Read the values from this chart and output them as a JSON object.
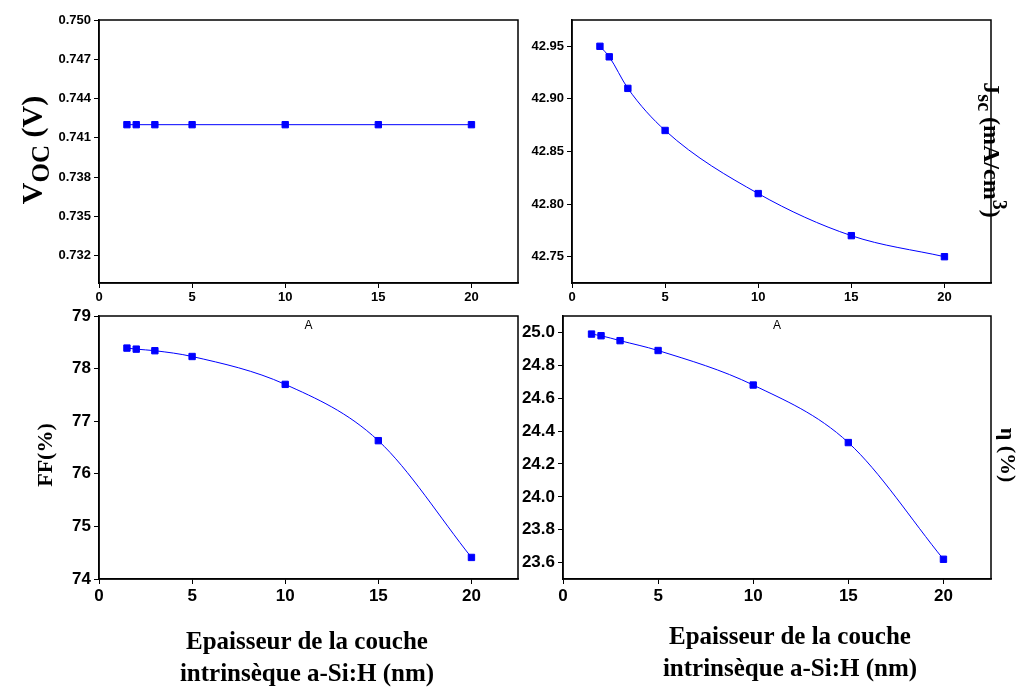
{
  "chart_data": [
    {
      "type": "line",
      "ylabel": "V$_{OC}$ (V)",
      "x": [
        1.5,
        2,
        3,
        5,
        10,
        15,
        20
      ],
      "series": [
        {
          "color": "#0000ff",
          "values": [
            0.742,
            0.742,
            0.742,
            0.742,
            0.742,
            0.742,
            0.742
          ]
        }
      ],
      "xlim": [
        0,
        22.5
      ],
      "xticks": [
        0,
        5,
        10,
        15,
        20
      ],
      "ylim": [
        0.7299,
        0.75
      ],
      "yticks": [
        0.732,
        0.735,
        0.738,
        0.741,
        0.744,
        0.747,
        {
          "value": 0.75,
          "label": "0.750"
        }
      ],
      "marker": "square",
      "grid": false,
      "legend": false
    },
    {
      "type": "line",
      "y2label": "J$_{sc}$ (mA/cm$^{3}$)",
      "x": [
        1.5,
        2,
        3,
        5,
        10,
        15,
        20
      ],
      "series": [
        {
          "color": "#0000ff",
          "values": [
            42.95,
            42.94,
            42.91,
            42.87,
            42.81,
            42.77,
            42.75
          ]
        }
      ],
      "xlim": [
        0,
        22.5
      ],
      "xticks": [
        0,
        5,
        10,
        15,
        20
      ],
      "ylim": [
        42.725,
        42.975
      ],
      "yticks": [
        42.75,
        {
          "value": 42.8,
          "label": "42.80"
        },
        42.85,
        {
          "value": 42.9,
          "label": "42.90"
        },
        42.95
      ],
      "marker": "square",
      "grid": false,
      "legend": false
    },
    {
      "type": "line",
      "ylabel": "FF(%)",
      "xlabel": "Epaisseur de la couche intrinsèque a-Si:H (nm)",
      "annotations": [
        "A"
      ],
      "x": [
        1.5,
        2,
        3,
        5,
        10,
        15,
        20
      ],
      "series": [
        {
          "color": "#0000ff",
          "values": [
            78.39,
            78.37,
            78.34,
            78.23,
            77.7,
            76.63,
            74.41
          ]
        }
      ],
      "xlim": [
        0,
        22.5
      ],
      "xticks": [
        0,
        5,
        10,
        15,
        20
      ],
      "ylim": [
        74,
        79
      ],
      "yticks": [
        74,
        75,
        76,
        77,
        78,
        79
      ],
      "marker": "square",
      "grid": false,
      "legend": false
    },
    {
      "type": "line",
      "y2label": "η (%)",
      "xlabel": "Epaisseur de la couche intrinsèque a-Si:H (nm)",
      "annotations": [
        "A"
      ],
      "x": [
        1.5,
        2,
        3,
        5,
        10,
        15,
        20
      ],
      "series": [
        {
          "color": "#0000ff",
          "values": [
            24.99,
            24.98,
            24.95,
            24.89,
            24.68,
            24.33,
            23.62
          ]
        }
      ],
      "xlim": [
        0,
        22.5
      ],
      "xticks": [
        0,
        5,
        10,
        15,
        20
      ],
      "ylim": [
        23.5,
        25.1
      ],
      "yticks": [
        23.6,
        23.8,
        {
          "value": 24,
          "label": "24.0"
        },
        24.2,
        24.4,
        24.6,
        24.8,
        {
          "value": 25,
          "label": "25.0"
        }
      ],
      "marker": "square",
      "grid": false,
      "legend": false
    }
  ]
}
